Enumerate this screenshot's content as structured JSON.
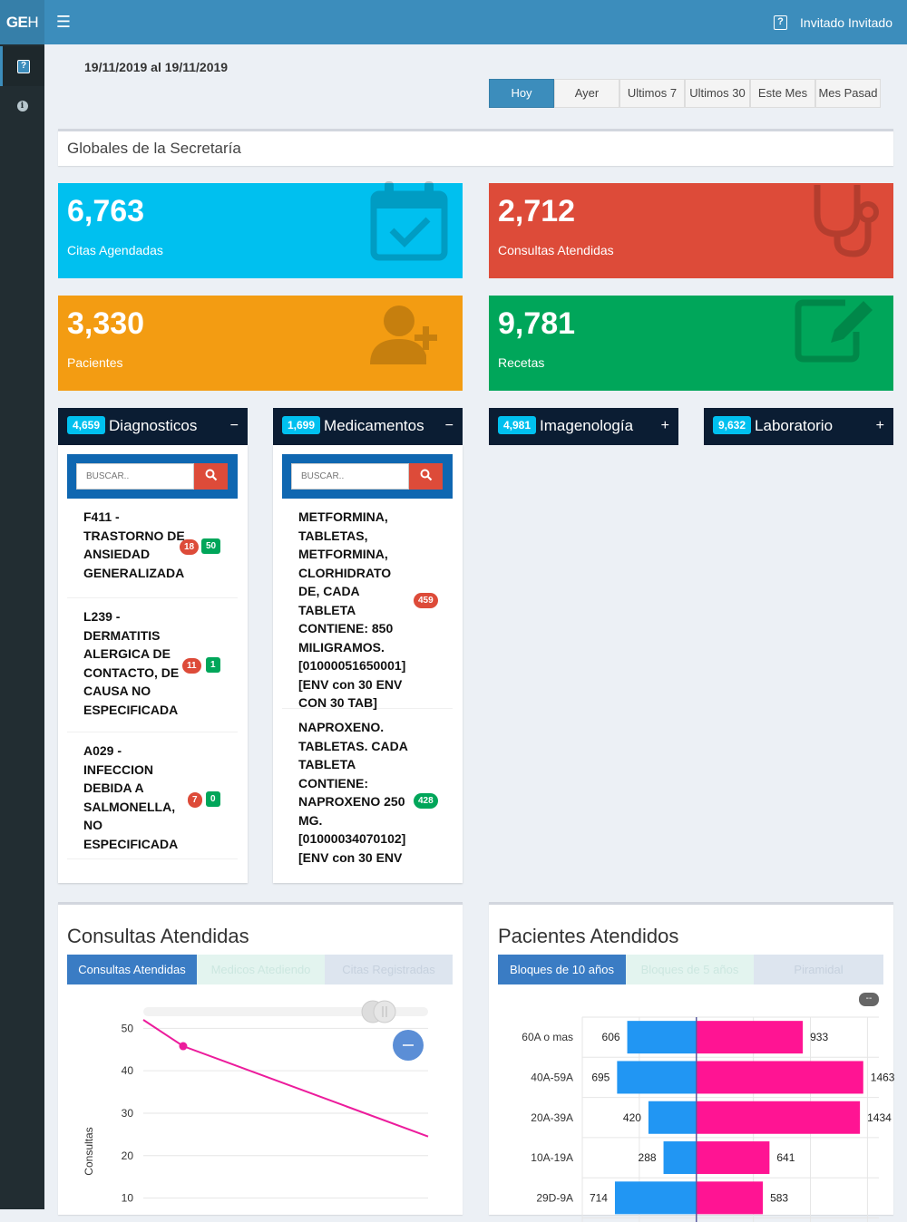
{
  "app": {
    "logo_bold": "GE",
    "logo_thin": "H",
    "menu_icon": "hamburger-icon",
    "user_name": "Invitado Invitado"
  },
  "sidebar": {
    "items": [
      {
        "icon": "question-square-icon",
        "glyph": "?"
      },
      {
        "icon": "info-circle-icon",
        "glyph": "i"
      }
    ]
  },
  "date_range": "19/11/2019 al 19/11/2019",
  "range_buttons": [
    "Hoy",
    "Ayer",
    "Ultimos 7",
    "Ultimos 30",
    "Este Mes",
    "Mes Pasad"
  ],
  "section_title": "Globales de la Secretaría",
  "stats": [
    {
      "value": "6,763",
      "label": "Citas Agendadas",
      "color": "#00c0ef",
      "icon": "calendar-check-icon"
    },
    {
      "value": "2,712",
      "label": "Consultas Atendidas",
      "color": "#dd4b39",
      "icon": "stethoscope-icon"
    },
    {
      "value": "3,330",
      "label": "Pacientes",
      "color": "#f39c12",
      "icon": "user-plus-icon"
    },
    {
      "value": "9,781",
      "label": "Recetas",
      "color": "#00a65a",
      "icon": "edit-icon"
    }
  ],
  "boxes": [
    {
      "count": "4,659",
      "title": "Diagnosticos",
      "tool": "−"
    },
    {
      "count": "1,699",
      "title": "Medicamentos",
      "tool": "−"
    },
    {
      "count": "4,981",
      "title": "Imagenología",
      "tool": "+"
    },
    {
      "count": "9,632",
      "title": "Laboratorio",
      "tool": "+"
    }
  ],
  "search_placeholder": "BUSCAR..",
  "diagnosticos": [
    {
      "text": "F411 - TRASTORNO DE ANSIEDAD GENERALIZADA",
      "red": "18",
      "green": "50"
    },
    {
      "text": "L239 - DERMATITIS ALERGICA DE CONTACTO, DE CAUSA NO ESPECIFICADA",
      "red": "11",
      "green": "1"
    },
    {
      "text": "A029 - INFECCION DEBIDA A SALMONELLA, NO ESPECIFICADA",
      "red": "7",
      "green": "0"
    }
  ],
  "medicamentos": [
    {
      "text": "METFORMINA, TABLETAS, METFORMINA, CLORHIDRATO DE, CADA TABLETA CONTIENE: 850 MILIGRAMOS. [01000051650001] [ENV con 30 ENV CON 30 TAB]",
      "count": "459",
      "color": "#dd4b39"
    },
    {
      "text": "NAPROXENO. TABLETAS. CADA TABLETA CONTIENE: NAPROXENO 250 MG. [01000034070102] [ENV con 30 ENV",
      "count": "428",
      "color": "#00a65a"
    }
  ],
  "consultas_panel": {
    "title": "Consultas Atendidas",
    "tabs": [
      "Consultas Atendidas",
      "Medicos Atediendo",
      "Citas Registradas"
    ],
    "ylabel": "Consultas",
    "zoom_icon": "minus-circle-icon"
  },
  "pacientes_panel": {
    "title": "Pacientes Atendidos",
    "tabs": [
      "Bloques de 10 años",
      "Bloques de 5 años",
      "Piramidal"
    ],
    "toggle_label": "--"
  },
  "chart_data": [
    {
      "type": "line",
      "title": "",
      "ylabel": "Consultas",
      "ylim": [
        5,
        52
      ],
      "yticks": [
        10,
        20,
        30,
        40,
        50
      ],
      "series": [
        {
          "color": "#ec1c9c",
          "points": [
            [
              0.0,
              52
            ],
            [
              0.14,
              45.8
            ],
            [
              1.0,
              24.5
            ]
          ]
        }
      ],
      "marker_index": 1
    },
    {
      "type": "bar",
      "orientation": "horizontal-diverging",
      "categories": [
        "60A o mas",
        "40A-59A",
        "20A-39A",
        "10A-19A",
        "29D-9A"
      ],
      "series": [
        {
          "color": "#2196f3",
          "values": [
            606,
            695,
            420,
            288,
            714
          ]
        },
        {
          "color": "#ff1493",
          "values": [
            933,
            1463,
            1434,
            641,
            583
          ]
        }
      ],
      "xlim": [
        -1000,
        1600
      ]
    }
  ]
}
